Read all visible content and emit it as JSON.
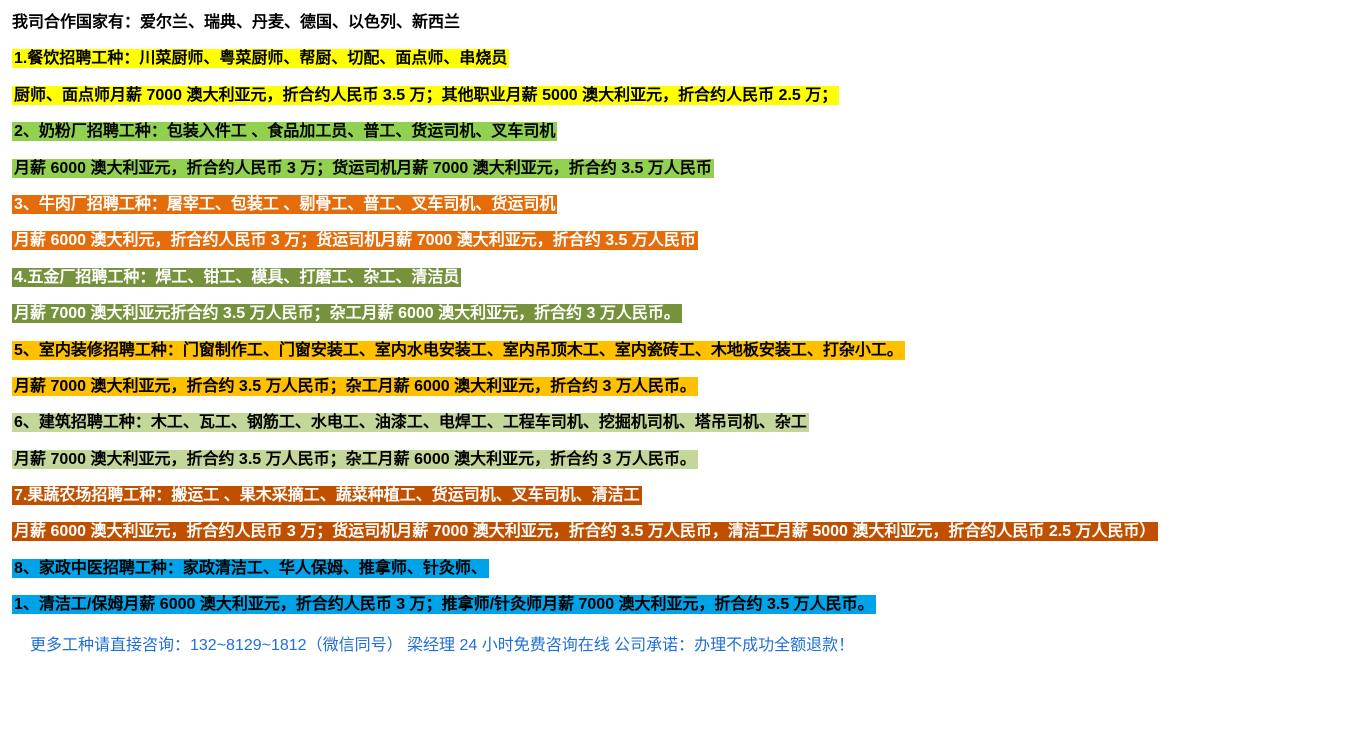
{
  "header": {
    "text": "我司合作国家有：爱尔兰、瑞典、丹麦、德国、以色列、新西兰",
    "color": "#000000"
  },
  "lines": [
    {
      "text": "1.餐饮招聘工种：川菜厨师、粤菜厨师、帮厨、切配、面点师、串烧员",
      "bg": "#ffff00",
      "color": "#000000"
    },
    {
      "text": "厨师、面点师月薪 7000 澳大利亚元，折合约人民币 3.5 万；其他职业月薪 5000 澳大利亚元，折合约人民币 2.5 万；",
      "bg": "#ffff00",
      "color": "#000000"
    },
    {
      "text": "2、奶粉厂招聘工种：包装入件工 、食品加工员、普工、货运司机、叉车司机",
      "bg": "#92d050",
      "color": "#000000"
    },
    {
      "text": "月薪 6000 澳大利亚元，折合约人民币 3 万；货运司机月薪 7000 澳大利亚元，折合约 3.5 万人民币",
      "bg": "#92d050",
      "color": "#000000"
    },
    {
      "text": "3、牛肉厂招聘工种：屠宰工、包装工 、剔骨工、普工、叉车司机、货运司机",
      "bg": "#e46c0a",
      "color": "#ffffff"
    },
    {
      "text": "月薪 6000 澳大利元，折合约人民币 3 万；货运司机月薪 7000 澳大利亚元，折合约 3.5 万人民币",
      "bg": "#e46c0a",
      "color": "#ffffff"
    },
    {
      "text": "4.五金厂招聘工种：焊工、钳工、模具、打磨工、杂工、清洁员",
      "bg": "#76923c",
      "color": "#ffffff"
    },
    {
      "text": "月薪 7000 澳大利亚元折合约 3.5 万人民币；杂工月薪 6000 澳大利亚元，折合约 3 万人民币。",
      "bg": "#76923c",
      "color": "#ffffff"
    },
    {
      "text": "5、室内装修招聘工种：门窗制作工、门窗安装工、室内水电安装工、室内吊顶木工、室内瓷砖工、木地板安装工、打杂小工。",
      "bg": "#ffc000",
      "color": "#000000"
    },
    {
      "text": "月薪 7000 澳大利亚元，折合约 3.5 万人民币；杂工月薪 6000 澳大利亚元，折合约 3 万人民币。",
      "bg": "#ffc000",
      "color": "#000000"
    },
    {
      "text": "6、建筑招聘工种：木工、瓦工、钢筋工、水电工、油漆工、电焊工、工程车司机、挖掘机司机、塔吊司机、杂工",
      "bg": "#c4d79b",
      "color": "#000000"
    },
    {
      "text": "月薪 7000 澳大利亚元，折合约 3.5 万人民币；杂工月薪 6000 澳大利亚元，折合约 3 万人民币。",
      "bg": "#c4d79b",
      "color": "#000000"
    },
    {
      "text": "7.果蔬农场招聘工种：搬运工 、果木采摘工、蔬菜种植工、货运司机、叉车司机、清洁工",
      "bg": "#c05000",
      "color": "#ffffff"
    },
    {
      "text": "月薪 6000 澳大利亚元，折合约人民币 3 万；货运司机月薪 7000 澳大利亚元，折合约 3.5 万人民币，清洁工月薪 5000 澳大利亚元，折合约人民币 2.5 万人民币）",
      "bg": "#c05000",
      "color": "#ffffff"
    },
    {
      "text": "8、家政中医招聘工种：家政清洁工、华人保姆、推拿师、针灸师、",
      "bg": "#00a2e8",
      "color": "#000000"
    },
    {
      "text": "1、清洁工/保姆月薪 6000 澳大利亚元，折合约人民币 3 万；推拿师/针灸师月薪 7000 澳大利亚元，折合约 3.5 万人民币。",
      "bg": "#00a2e8",
      "color": "#000000"
    }
  ],
  "footer": {
    "text": "更多工种请直接咨询：132~8129~1812（微信同号）  梁经理  24 小时免费咨询在线  公司承诺：办理不成功全额退款！",
    "color": "#1f6fd6"
  }
}
